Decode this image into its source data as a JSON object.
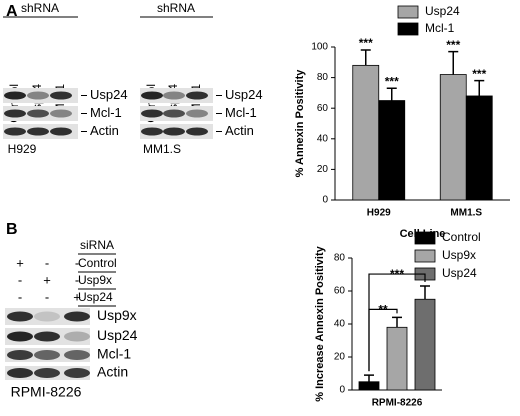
{
  "panels": [
    "A",
    "B"
  ],
  "blots": [
    {
      "header": "shRNA",
      "lanes": [
        "Control",
        "Usp24",
        "Mcl-1"
      ],
      "rows": [
        "Usp24",
        "Mcl-1",
        "Actin"
      ],
      "cell_line": "H929"
    },
    {
      "header": "shRNA",
      "lanes": [
        "Control",
        "Usp24",
        "Mcl-1"
      ],
      "rows": [
        "Usp24",
        "Mcl-1",
        "Actin"
      ],
      "cell_line": "MM1.S"
    },
    {
      "header": "siRNA",
      "conditions": [
        "Control",
        "Usp9x",
        "Usp24"
      ],
      "signs": [
        [
          "+",
          "-",
          "-"
        ],
        [
          "-",
          "+",
          "-"
        ],
        [
          "-",
          "-",
          "+"
        ]
      ],
      "rows": [
        "Usp9x",
        "Usp24",
        "Mcl-1",
        "Actin"
      ],
      "cell_line": "RPMI-8226"
    }
  ],
  "chart_data": [
    {
      "type": "bar",
      "y_label": "% Annexin Positivity",
      "x_label": "Cell Line",
      "categories": [
        "H929",
        "MM1.S"
      ],
      "series": [
        {
          "name": "Usp24",
          "color": "#a6a6a6",
          "values": [
            88,
            82
          ],
          "errors": [
            10,
            15
          ],
          "significance": [
            "***",
            "***"
          ]
        },
        {
          "name": "Mcl-1",
          "color": "#000000",
          "values": [
            65,
            68
          ],
          "errors": [
            8,
            10
          ],
          "significance": [
            "***",
            "***"
          ]
        }
      ],
      "ylim": [
        0,
        100
      ],
      "yticks": [
        0,
        20,
        40,
        60,
        80,
        100
      ]
    },
    {
      "type": "bar",
      "y_label": "% Increase Annexin Positivity",
      "categories": [
        "RPMI-8226"
      ],
      "series": [
        {
          "name": "Control",
          "color": "#000000",
          "values": [
            5
          ],
          "errors": [
            4
          ]
        },
        {
          "name": "Usp9x",
          "color": "#a6a6a6",
          "values": [
            38
          ],
          "errors": [
            6
          ]
        },
        {
          "name": "Usp24",
          "color": "#6e6e6e",
          "values": [
            55
          ],
          "errors": [
            8
          ]
        }
      ],
      "comparisons": [
        {
          "text": "***",
          "from": 0,
          "to": 2
        },
        {
          "text": "**",
          "from": 0,
          "to": 1
        }
      ],
      "ylim": [
        0,
        80
      ],
      "yticks": [
        0,
        20,
        40,
        60,
        80
      ]
    }
  ]
}
